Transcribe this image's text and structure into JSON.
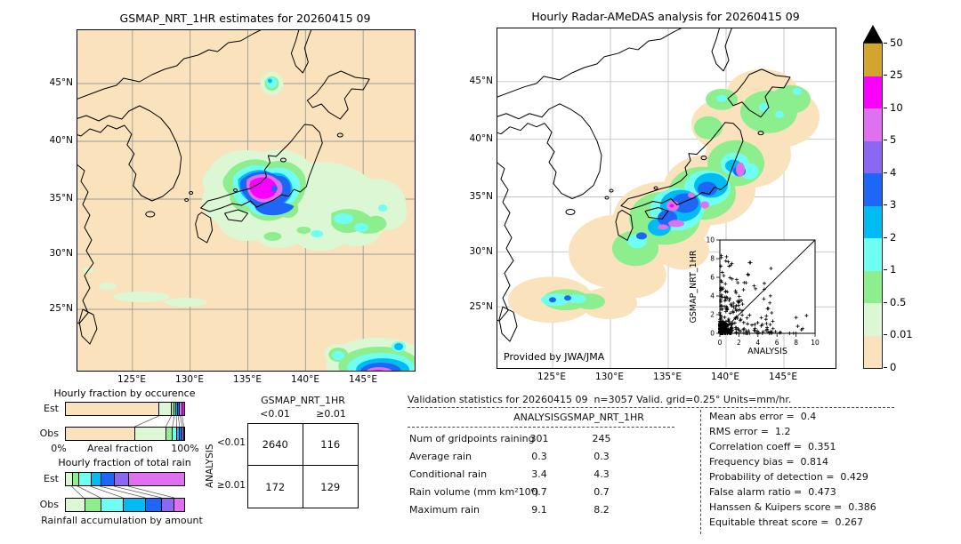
{
  "palette": {
    "tan": "#FAE3BC",
    "palegreen": "#DCF7D3",
    "green": "#8DEE8E",
    "cyan": "#6FFFF2",
    "deepsky": "#00BCF2",
    "blue": "#1E66F5",
    "purple": "#8A68F2",
    "orchid": "#DF70F0",
    "magenta": "#FA00FF",
    "gold": "#D2A52E",
    "overflow": "#000000",
    "coast": "#000000",
    "grid_left": "#9A9A94",
    "grid_right": "#C2C2C2"
  },
  "chart_data": [
    {
      "name": "gsmap-map",
      "type": "heatmap",
      "title": "GSMAP_NRT_1HR estimates for 20260415 09",
      "lat_ticks": [
        "45°N",
        "40°N",
        "35°N",
        "30°N",
        "25°N"
      ],
      "lon_ticks": [
        "125°E",
        "130°E",
        "135°E",
        "140°E",
        "145°E"
      ],
      "units": "mm/hr",
      "description": "Rain system over central Japan with >10 mm/hr magenta core ringed by blue, cyan and green; light-rain shield extending east over the Pacific; small cell near Sakhalan coast ~46N 141E; intense cell clipped at south-east corner ~21N 145E; faint drizzle streaks near 26N west of 132E."
    },
    {
      "name": "radar-amedas-map",
      "type": "heatmap",
      "title": "Hourly Radar-AMeDAS analysis for 20260415 09",
      "lat_ticks": [
        "45°N",
        "40°N",
        "35°N",
        "30°N",
        "25°N"
      ],
      "lon_ticks": [
        "125°E",
        "130°E",
        "135°E",
        "140°E",
        "145°E"
      ],
      "credit": "Provided by JWA/JMA",
      "units": "mm/hr",
      "description": "Analysis rain area hugging the Japan arc: trace halo (0-0.01) outermost, green/cyan/blue cores over central Honshu with several violet 5-10 mm/hr spots, patches over Hokkaido/NE, and a rain band near 25-26N south-west."
    },
    {
      "name": "rain-colorbar",
      "type": "colorbar",
      "units": "mm/hr",
      "tick_labels": [
        "50",
        "25",
        "10",
        "5",
        "4",
        "3",
        "2",
        "1",
        "0.5",
        "0.01",
        "0"
      ],
      "segment_colors_top_to_bottom": [
        "#D2A52E",
        "#FA00FF",
        "#DF70F0",
        "#8A68F2",
        "#1E66F5",
        "#00BCF2",
        "#6FFFF2",
        "#8DEE8E",
        "#DCF7D3",
        "#FAE3BC"
      ],
      "overflow_color": "#000000"
    },
    {
      "name": "scatter-inset",
      "type": "scatter",
      "xlabel": "ANALYSIS",
      "ylabel": "GSMAP_NRT_1HR",
      "xlim": [
        0,
        10
      ],
      "ylim": [
        0,
        10
      ],
      "x_ticks": [
        "0",
        "2",
        "4",
        "6",
        "8",
        "10"
      ],
      "y_ticks": [
        "0",
        "2",
        "4",
        "6",
        "8",
        "10"
      ],
      "marker": "+",
      "diagonal_line": true,
      "max_points": [
        [
          9.1,
          1.9
        ],
        [
          0.7,
          8.2
        ]
      ],
      "distribution_clusters": [
        {
          "n": 170,
          "x": [
            0,
            1.3
          ],
          "y": [
            0,
            1.3
          ],
          "powx": 2.6,
          "powy": 2.6
        },
        {
          "n": 85,
          "x": [
            0.1,
            2.3
          ],
          "y": [
            0.3,
            8.4
          ],
          "powx": 2.0,
          "powy": 1.7
        },
        {
          "n": 75,
          "x": [
            0,
            5.5
          ],
          "y": [
            0,
            4.2
          ],
          "powx": 2.2,
          "powy": 2.2
        },
        {
          "n": 32,
          "x": [
            2.5,
            9.2
          ],
          "y": [
            0,
            2.3
          ],
          "powx": 1.6,
          "powy": 2.0
        },
        {
          "n": 14,
          "x": [
            1.8,
            6.0
          ],
          "y": [
            3.0,
            7.6
          ],
          "powx": 1.2,
          "powy": 1.2
        }
      ]
    },
    {
      "name": "areal-fraction-bars",
      "type": "bar",
      "title": "Hourly fraction by occurence",
      "row_labels": [
        "Est",
        "Obs"
      ],
      "axis_labels": [
        "0%",
        "Areal fraction",
        "100%"
      ],
      "segment_colors": [
        "#FAE3BC",
        "#DCF7D3",
        "#8DEE8E",
        "#6FFFF2",
        "#00BCF2",
        "#1E66F5",
        "#DF70F0",
        "#FA00FF"
      ],
      "series": [
        {
          "name": "Est",
          "values": [
            78,
            10.5,
            2.5,
            1.7,
            1.5,
            1.7,
            1.6,
            2.5
          ]
        },
        {
          "name": "Obs",
          "values": [
            58,
            26,
            5.5,
            3.5,
            2.5,
            2.2,
            1.3,
            1
          ]
        }
      ]
    },
    {
      "name": "rain-accumulation-bars",
      "type": "bar",
      "title": "Hourly fraction of total rain",
      "caption": "Rainfall accumulation by amount",
      "row_labels": [
        "Est",
        "Obs"
      ],
      "segment_colors": [
        "#DCF7D3",
        "#8DEE8E",
        "#6FFFF2",
        "#00BCF2",
        "#1E66F5",
        "#8A68F2",
        "#DF70F0"
      ],
      "series": [
        {
          "name": "Est",
          "values": [
            5.4,
            5,
            10.6,
            8,
            11.6,
            12,
            47.4
          ]
        },
        {
          "name": "Obs",
          "values": [
            15.5,
            14,
            19,
            18.5,
            13.5,
            10.5,
            9
          ]
        }
      ]
    },
    {
      "name": "contingency-table",
      "type": "table",
      "col_group": "GSMAP_NRT_1HR",
      "row_group": "ANALYSIS",
      "col_labels": [
        "<0.01",
        "≥0.01"
      ],
      "row_labels": [
        "<0.01",
        "≥0.01"
      ],
      "cells": [
        [
          "2640",
          "116"
        ],
        [
          "172",
          "129"
        ]
      ]
    },
    {
      "name": "validation-stats",
      "type": "table",
      "header": "Validation statistics for 20260415 09  n=3057 Valid. grid=0.25° Units=mm/hr.",
      "columns": [
        "ANALYSIS",
        "GSMAP_NRT_1HR"
      ],
      "rows": [
        {
          "label": "Num of gridpoints raining",
          "values": [
            "301",
            "245"
          ]
        },
        {
          "label": "Average rain",
          "values": [
            "0.3",
            "0.3"
          ]
        },
        {
          "label": "Conditional rain",
          "values": [
            "3.4",
            "4.3"
          ]
        },
        {
          "label": "Rain volume (mm km²10⁶)",
          "values": [
            "0.7",
            "0.7"
          ]
        },
        {
          "label": "Maximum rain",
          "values": [
            "9.1",
            "8.2"
          ]
        }
      ],
      "metrics": [
        {
          "label": "Mean abs error =",
          "value": "0.4"
        },
        {
          "label": "RMS error =",
          "value": "1.2"
        },
        {
          "label": "Correlation coeff =",
          "value": "0.351"
        },
        {
          "label": "Frequency bias =",
          "value": "0.814"
        },
        {
          "label": "Probability of detection =",
          "value": "0.429"
        },
        {
          "label": "False alarm ratio =",
          "value": "0.473"
        },
        {
          "label": "Hanssen & Kuipers score =",
          "value": "0.386"
        },
        {
          "label": "Equitable threat score =",
          "value": "0.267"
        }
      ]
    }
  ]
}
